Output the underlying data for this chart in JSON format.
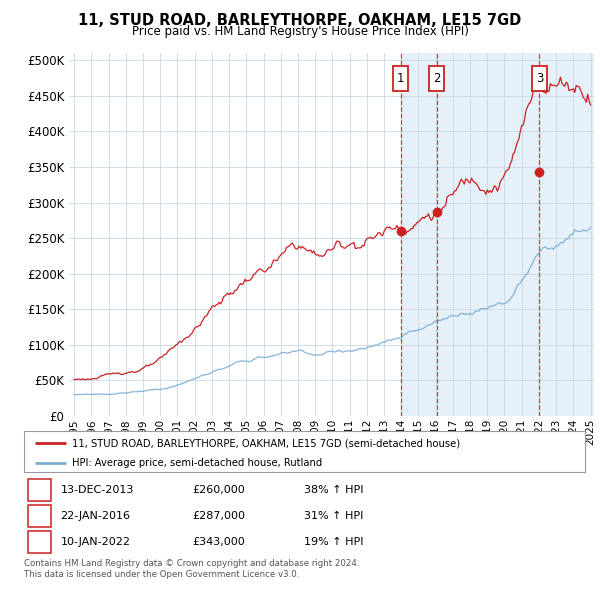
{
  "title": "11, STUD ROAD, BARLEYTHORPE, OAKHAM, LE15 7GD",
  "subtitle": "Price paid vs. HM Land Registry's House Price Index (HPI)",
  "legend_line1": "11, STUD ROAD, BARLEYTHORPE, OAKHAM, LE15 7GD (semi-detached house)",
  "legend_line2": "HPI: Average price, semi-detached house, Rutland",
  "footer": "Contains HM Land Registry data © Crown copyright and database right 2024.\nThis data is licensed under the Open Government Licence v3.0.",
  "transactions": [
    {
      "num": 1,
      "date": "13-DEC-2013",
      "price": 260000,
      "pct": "38%",
      "dir": "↑"
    },
    {
      "num": 2,
      "date": "22-JAN-2016",
      "price": 287000,
      "pct": "31%",
      "dir": "↑"
    },
    {
      "num": 3,
      "date": "10-JAN-2022",
      "price": 343000,
      "pct": "19%",
      "dir": "↑"
    }
  ],
  "transaction_dates_decimal": [
    2013.96,
    2016.06,
    2022.03
  ],
  "hpi_color": "#7aadd4",
  "price_color": "#cc2222",
  "background_color": "#ffffff",
  "grid_color": "#c8d8e8",
  "shade_color": "#daeaf7",
  "ylim": [
    0,
    510000
  ],
  "yticks": [
    0,
    50000,
    100000,
    150000,
    200000,
    250000,
    300000,
    350000,
    400000,
    450000,
    500000
  ],
  "xstart": 1994.7,
  "xend": 2025.2
}
